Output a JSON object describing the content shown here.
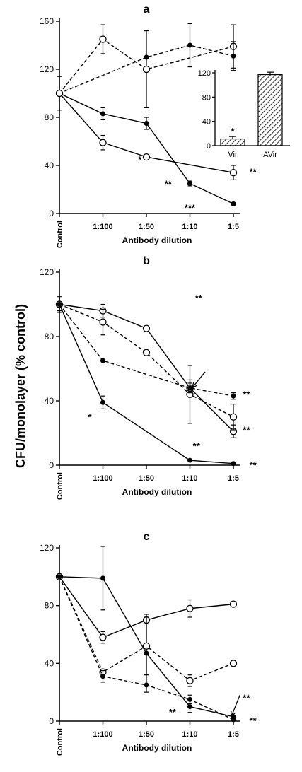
{
  "chart_data": {
    "type": "line",
    "ylabel": "CFU/monolayer (% control)",
    "panels": [
      {
        "id": "a",
        "title": "a",
        "xlabel": "Antibody dilution",
        "categories": [
          "Control",
          "1:100",
          "1:50",
          "1:10",
          "1:5"
        ],
        "ylim": [
          0,
          160
        ],
        "yticks": [
          0,
          40,
          80,
          120,
          160
        ],
        "series": [
          {
            "style": "dashed",
            "marker": "open",
            "values": [
              100,
              145,
              120,
              null,
              139
            ],
            "err": [
              14,
              12,
              32,
              null,
              18
            ]
          },
          {
            "style": "dashed",
            "marker": "filled",
            "values": [
              100,
              null,
              130,
              140,
              131
            ],
            "err": [
              0,
              null,
              0,
              18,
              12
            ]
          },
          {
            "style": "solid",
            "marker": "filled",
            "values": [
              100,
              83,
              75,
              25,
              8
            ],
            "err": [
              0,
              5,
              5,
              2,
              1
            ]
          },
          {
            "style": "solid",
            "marker": "open",
            "values": [
              100,
              59,
              47,
              null,
              34
            ],
            "err": [
              0,
              6,
              0,
              null,
              6
            ]
          }
        ],
        "annotations": [
          {
            "text": "*",
            "x": 1.85,
            "y": 42
          },
          {
            "text": "**",
            "x": 2.5,
            "y": 22
          },
          {
            "text": "***",
            "x": 3.0,
            "y": 2
          },
          {
            "text": "**",
            "x": 4.45,
            "y": 32
          }
        ],
        "inset": {
          "type": "bar",
          "categories": [
            "Vir",
            "AVir"
          ],
          "values": [
            11,
            117
          ],
          "err": [
            4,
            4
          ],
          "ylim": [
            0,
            120
          ],
          "yticks": [
            0,
            40,
            80,
            120
          ],
          "annotations": [
            {
              "text": "*",
              "category": "Vir"
            }
          ]
        }
      },
      {
        "id": "b",
        "title": "b",
        "xlabel": "Antibody dilution",
        "categories": [
          "Control",
          "1:100",
          "1:50",
          "1:10",
          "1:5"
        ],
        "ylim": [
          0,
          120
        ],
        "yticks": [
          0,
          40,
          80,
          120
        ],
        "series": [
          {
            "style": "solid",
            "marker": "open",
            "values": [
              100,
              96,
              85,
              48,
              21
            ],
            "err": [
              4,
              4,
              0,
              5,
              4
            ]
          },
          {
            "style": "dashed",
            "marker": "open",
            "values": [
              100,
              89,
              70,
              44,
              30
            ],
            "err": [
              5,
              8,
              0,
              18,
              8
            ]
          },
          {
            "style": "dashed",
            "marker": "filled",
            "values": [
              100,
              65,
              null,
              48,
              43
            ],
            "err": [
              0,
              0,
              null,
              3,
              2
            ]
          },
          {
            "style": "solid",
            "marker": "filled",
            "values": [
              100,
              39,
              null,
              3,
              1
            ],
            "err": [
              5,
              4,
              null,
              0,
              0
            ]
          }
        ],
        "annotations": [
          {
            "text": "*",
            "x": 0.7,
            "y": 28
          },
          {
            "text": "**",
            "x": 3.2,
            "y": 102
          },
          {
            "text": "**",
            "x": 4.3,
            "y": 42
          },
          {
            "text": "**",
            "x": 4.3,
            "y": 20
          },
          {
            "text": "**",
            "x": 3.15,
            "y": 10
          },
          {
            "text": "**",
            "x": 4.45,
            "y": -2
          }
        ],
        "arrow": {
          "from": [
            3.35,
            58
          ],
          "to": [
            3.05,
            48
          ]
        }
      },
      {
        "id": "c",
        "title": "c",
        "xlabel": "Antibody dilution",
        "categories": [
          "Control",
          "1:100",
          "1:50",
          "1:10",
          "1:5"
        ],
        "ylim": [
          0,
          120
        ],
        "yticks": [
          0,
          40,
          80,
          120
        ],
        "series": [
          {
            "style": "solid",
            "marker": "open",
            "values": [
              100,
              58,
              70,
              78,
              81
            ],
            "err": [
              0,
              4,
              0,
              6,
              0
            ]
          },
          {
            "style": "solid",
            "marker": "filled",
            "values": [
              100,
              99,
              47,
              10,
              3
            ],
            "err": [
              0,
              22,
              27,
              4,
              0
            ]
          },
          {
            "style": "dashed",
            "marker": "open",
            "values": [
              100,
              34,
              52,
              28,
              40
            ],
            "err": [
              0,
              0,
              20,
              4,
              0
            ]
          },
          {
            "style": "dashed",
            "marker": "filled",
            "values": [
              100,
              31,
              25,
              15,
              1
            ],
            "err": [
              0,
              4,
              0,
              3,
              0
            ]
          }
        ],
        "annotations": [
          {
            "text": "**",
            "x": 2.6,
            "y": 4
          },
          {
            "text": "**",
            "x": 4.3,
            "y": 14
          },
          {
            "text": "**",
            "x": 4.45,
            "y": -2
          }
        ],
        "arrow": {
          "from": [
            4.15,
            18
          ],
          "to": [
            3.95,
            3
          ]
        }
      }
    ]
  }
}
